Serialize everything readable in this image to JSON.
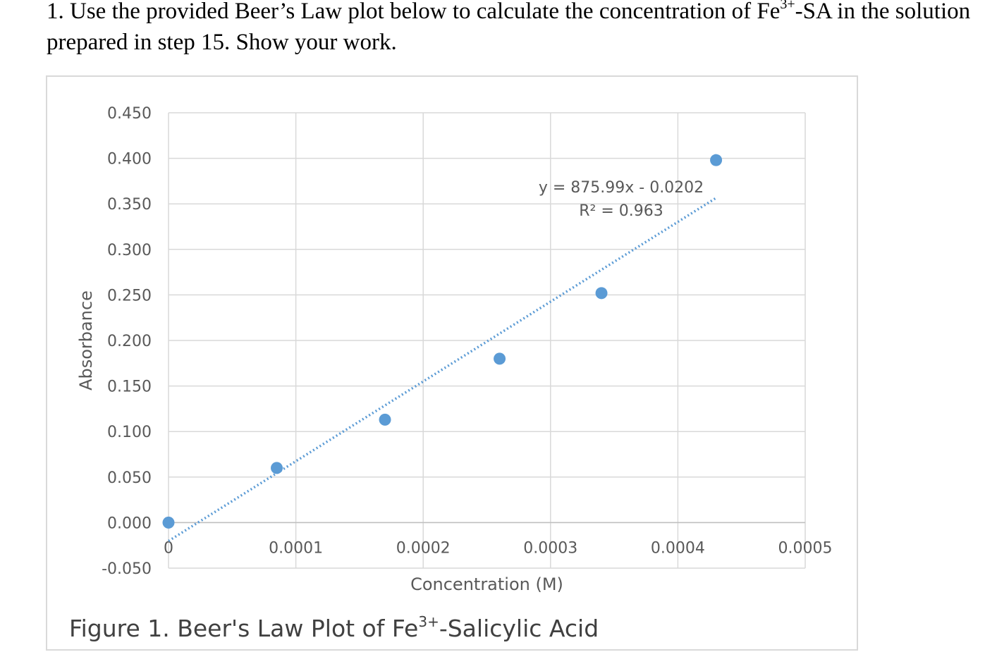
{
  "question": {
    "prefix": "1. Use the provided Beer’s Law plot below to calculate the concentration of Fe",
    "superscript": "3+",
    "suffix": "-SA in the solution prepared in step 15.  Show your work."
  },
  "caption": {
    "prefix": "Figure 1. Beer's Law Plot of  Fe",
    "superscript": "3+",
    "suffix": "-Salicylic Acid"
  },
  "chart_data": {
    "type": "scatter",
    "xlabel": "Concentration (M)",
    "ylabel": "Absorbance",
    "xlim": [
      0,
      0.0005
    ],
    "ylim": [
      -0.05,
      0.45
    ],
    "x_ticks": [
      0,
      0.0001,
      0.0002,
      0.0003,
      0.0004,
      0.0005
    ],
    "x_tick_labels": [
      "0",
      "0.0001",
      "0.0002",
      "0.0003",
      "0.0004",
      "0.0005"
    ],
    "y_ticks": [
      -0.05,
      0,
      0.05,
      0.1,
      0.15,
      0.2,
      0.25,
      0.3,
      0.35,
      0.4,
      0.45
    ],
    "y_tick_labels": [
      "-0.050",
      "0.000",
      "0.050",
      "0.100",
      "0.150",
      "0.200",
      "0.250",
      "0.300",
      "0.350",
      "0.400",
      "0.450"
    ],
    "grid": true,
    "points": [
      {
        "x": 0,
        "y": 0
      },
      {
        "x": 8.5e-05,
        "y": 0.06
      },
      {
        "x": 0.00017,
        "y": 0.113
      },
      {
        "x": 0.00026,
        "y": 0.18
      },
      {
        "x": 0.00034,
        "y": 0.252
      },
      {
        "x": 0.00043,
        "y": 0.398
      }
    ],
    "trendline": {
      "type": "linear",
      "slope": 875.99,
      "intercept": -0.0202,
      "x_range": [
        0,
        0.00043
      ],
      "equation_label": "y = 875.99x - 0.0202",
      "r2_label": "R² = 0.963"
    },
    "colors": {
      "marker": "#5b9bd5",
      "grid": "#d9d9d9",
      "text": "#595959"
    }
  }
}
